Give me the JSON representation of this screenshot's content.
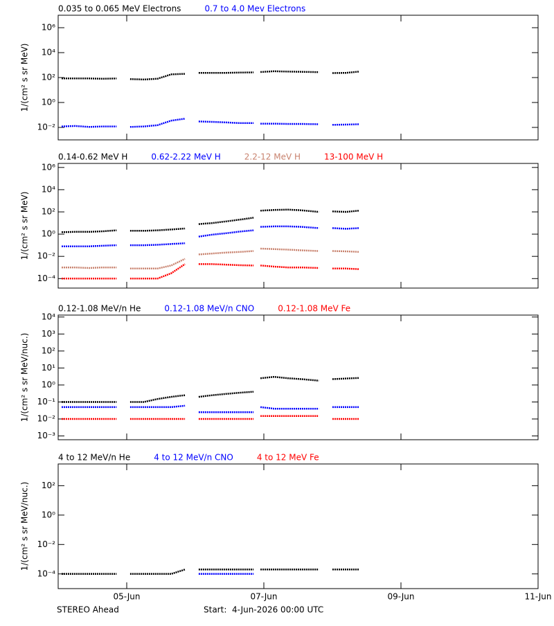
{
  "chart_data": [
    {
      "type": "line",
      "log_y": true,
      "ylabel": "1/(cm² s sr MeV)",
      "xlim": [
        0,
        7
      ],
      "xticks": [
        1,
        3,
        5,
        7
      ],
      "ylim": [
        0.001,
        10000000
      ],
      "yticks": [
        {
          "value": 0.01,
          "label": "10⁻²"
        },
        {
          "value": 1,
          "label": "10⁰"
        },
        {
          "value": 100,
          "label": "10²"
        },
        {
          "value": 10000,
          "label": "10⁴"
        },
        {
          "value": 1000000,
          "label": "10⁶"
        }
      ],
      "x": [
        0.05,
        0.25,
        0.45,
        0.65,
        0.85,
        0.92,
        1.05,
        1.25,
        1.45,
        1.65,
        1.85,
        1.92,
        2.05,
        2.25,
        2.45,
        2.65,
        2.85,
        2.88,
        2.95,
        3.15,
        3.35,
        3.55,
        3.8,
        3.92,
        4.0,
        4.2,
        4.39
      ],
      "series": [
        {
          "name": "0.035 to 0.065 MeV Electrons",
          "color": "#000000",
          "values": [
            85,
            85,
            85,
            80,
            85,
            null,
            75,
            70,
            80,
            180,
            200,
            null,
            240,
            240,
            240,
            250,
            260,
            null,
            280,
            320,
            300,
            290,
            270,
            null,
            230,
            240,
            300
          ]
        },
        {
          "name": "0.7 to 4.0 Mev Electrons",
          "color": "#0000ff",
          "values": [
            0.012,
            0.013,
            0.011,
            0.012,
            0.012,
            null,
            0.011,
            0.012,
            0.015,
            0.035,
            0.05,
            null,
            0.03,
            0.028,
            0.025,
            0.022,
            0.022,
            null,
            0.02,
            0.02,
            0.019,
            0.019,
            0.018,
            null,
            0.016,
            0.017,
            0.018
          ]
        }
      ]
    },
    {
      "type": "line",
      "log_y": true,
      "ylabel": "1/(cm² s sr MeV)",
      "xlim": [
        0,
        7
      ],
      "xticks": [
        1,
        3,
        5,
        7
      ],
      "ylim": [
        1.4e-05,
        2300000
      ],
      "yticks": [
        {
          "value": 0.0001,
          "label": "10⁻⁴"
        },
        {
          "value": 0.01,
          "label": "10⁻²"
        },
        {
          "value": 1,
          "label": "10⁰"
        },
        {
          "value": 100,
          "label": "10²"
        },
        {
          "value": 10000,
          "label": "10⁴"
        },
        {
          "value": 1000000,
          "label": "10⁶"
        }
      ],
      "x": [
        0.05,
        0.25,
        0.45,
        0.65,
        0.85,
        0.92,
        1.05,
        1.25,
        1.45,
        1.65,
        1.85,
        1.92,
        2.05,
        2.25,
        2.45,
        2.65,
        2.85,
        2.88,
        2.95,
        3.15,
        3.35,
        3.55,
        3.8,
        3.92,
        4.0,
        4.2,
        4.39
      ],
      "series": [
        {
          "name": "0.14-0.62 MeV H",
          "color": "#000000",
          "values": [
            1.5,
            1.6,
            1.6,
            1.8,
            2.2,
            null,
            2,
            2,
            2.2,
            2.6,
            3.2,
            null,
            8,
            10,
            14,
            20,
            30,
            null,
            130,
            150,
            160,
            140,
            100,
            null,
            110,
            100,
            130
          ]
        },
        {
          "name": "0.62-2.22 MeV H",
          "color": "#0000ff",
          "values": [
            0.08,
            0.08,
            0.08,
            0.09,
            0.1,
            null,
            0.1,
            0.1,
            0.11,
            0.13,
            0.15,
            null,
            0.6,
            0.9,
            1.2,
            1.7,
            2.2,
            null,
            4.5,
            5,
            5,
            4.5,
            3.5,
            null,
            3.5,
            3,
            3.5
          ]
        },
        {
          "name": "2.2-12 MeV H",
          "color": "#c8826e",
          "values": [
            0.001,
            0.001,
            0.0009,
            0.001,
            0.001,
            null,
            0.0008,
            0.0008,
            0.0008,
            0.0015,
            0.006,
            null,
            0.015,
            0.018,
            0.022,
            0.025,
            0.03,
            null,
            0.05,
            0.045,
            0.04,
            0.035,
            0.03,
            null,
            0.03,
            0.028,
            0.025
          ]
        },
        {
          "name": "13-100 MeV H",
          "color": "#ff0000",
          "values": [
            0.0001,
            0.0001,
            0.0001,
            0.0001,
            0.0001,
            null,
            0.0001,
            0.0001,
            0.0001,
            0.0003,
            0.002,
            null,
            0.002,
            0.002,
            0.0018,
            0.0016,
            0.0015,
            null,
            0.0015,
            0.0012,
            0.001,
            0.001,
            0.0009,
            null,
            0.0008,
            0.0008,
            0.0007
          ]
        }
      ]
    },
    {
      "type": "line",
      "log_y": true,
      "ylabel": "1/(cm² s sr MeV/nuc.)",
      "xlim": [
        0,
        7
      ],
      "xticks": [
        1,
        3,
        5,
        7
      ],
      "ylim": [
        0.0006,
        13000
      ],
      "yticks": [
        {
          "value": 0.001,
          "label": "10⁻³"
        },
        {
          "value": 0.01,
          "label": "10⁻²"
        },
        {
          "value": 0.1,
          "label": "10⁻¹"
        },
        {
          "value": 1,
          "label": "10⁰"
        },
        {
          "value": 10,
          "label": "10¹"
        },
        {
          "value": 100,
          "label": "10²"
        },
        {
          "value": 1000,
          "label": "10³"
        },
        {
          "value": 10000,
          "label": "10⁴"
        }
      ],
      "x": [
        0.05,
        0.25,
        0.45,
        0.65,
        0.85,
        0.92,
        1.05,
        1.25,
        1.45,
        1.65,
        1.85,
        1.92,
        2.05,
        2.25,
        2.45,
        2.65,
        2.85,
        2.88,
        2.95,
        3.15,
        3.35,
        3.55,
        3.8,
        3.92,
        4.0,
        4.2,
        4.39
      ],
      "series": [
        {
          "name": "0.12-1.08 MeV/n He",
          "color": "#000000",
          "values": [
            0.1,
            0.1,
            0.1,
            0.1,
            0.1,
            null,
            0.1,
            0.1,
            0.15,
            0.2,
            0.25,
            null,
            0.2,
            0.25,
            0.3,
            0.35,
            0.4,
            null,
            2.5,
            3,
            2.5,
            2.2,
            1.8,
            null,
            2.2,
            2.4,
            2.6
          ]
        },
        {
          "name": "0.12-1.08 MeV/n CNO",
          "color": "#0000ff",
          "values": [
            0.05,
            0.05,
            0.05,
            0.05,
            0.05,
            null,
            0.05,
            0.05,
            0.05,
            0.05,
            0.06,
            null,
            0.025,
            0.025,
            0.025,
            0.025,
            0.025,
            null,
            0.05,
            0.04,
            0.04,
            0.04,
            0.04,
            null,
            0.05,
            0.05,
            0.05
          ]
        },
        {
          "name": "0.12-1.08 MeV Fe",
          "color": "#ff0000",
          "values": [
            0.01,
            0.01,
            0.01,
            0.01,
            0.01,
            null,
            0.01,
            0.01,
            0.01,
            0.01,
            0.01,
            null,
            0.01,
            0.01,
            0.01,
            0.01,
            0.01,
            null,
            0.015,
            0.015,
            0.015,
            0.015,
            0.015,
            null,
            0.01,
            0.01,
            0.01
          ]
        }
      ]
    },
    {
      "type": "line",
      "log_y": true,
      "ylabel": "1/(cm² s sr MeV/nuc.)",
      "xlim": [
        0,
        7
      ],
      "xticks": [
        {
          "value": 1,
          "label": "05-Jun"
        },
        {
          "value": 3,
          "label": "07-Jun"
        },
        {
          "value": 5,
          "label": "09-Jun"
        },
        {
          "value": 7,
          "label": "11-Jun"
        }
      ],
      "ylim": [
        1e-05,
        3000
      ],
      "yticks": [
        {
          "value": 0.0001,
          "label": "10⁻⁴"
        },
        {
          "value": 0.01,
          "label": "10⁻²"
        },
        {
          "value": 1,
          "label": "10⁰"
        },
        {
          "value": 100,
          "label": "10²"
        }
      ],
      "x": [
        0.05,
        0.25,
        0.45,
        0.65,
        0.85,
        0.92,
        1.05,
        1.25,
        1.45,
        1.65,
        1.85,
        1.92,
        2.05,
        2.25,
        2.45,
        2.65,
        2.85,
        2.88,
        2.95,
        3.15,
        3.35,
        3.55,
        3.8,
        3.92,
        4.0,
        4.2,
        4.39
      ],
      "series": [
        {
          "name": "4 to 12 MeV/n He",
          "color": "#000000",
          "values": [
            0.0001,
            0.0001,
            0.0001,
            0.0001,
            0.0001,
            null,
            0.0001,
            0.0001,
            0.0001,
            0.0001,
            0.0002,
            null,
            0.0002,
            0.0002,
            0.0002,
            0.0002,
            0.0002,
            null,
            0.0002,
            0.0002,
            0.0002,
            0.0002,
            0.0002,
            null,
            0.0002,
            0.0002,
            0.0002
          ]
        },
        {
          "name": "4 to 12 MeV/n CNO",
          "color": "#0000ff",
          "values": [
            null,
            null,
            null,
            null,
            null,
            null,
            null,
            null,
            null,
            null,
            null,
            null,
            0.0001,
            0.0001,
            0.0001,
            0.0001,
            0.0001,
            null,
            null,
            null,
            null,
            null,
            null,
            null,
            null,
            null,
            null
          ]
        },
        {
          "name": "4 to 12 MeV Fe",
          "color": "#ff0000",
          "values": [
            null,
            null,
            null,
            null,
            null,
            null,
            null,
            null,
            null,
            null,
            null,
            null,
            null,
            null,
            null,
            null,
            null,
            null,
            null,
            null,
            null,
            null,
            null,
            null,
            null,
            null,
            null
          ]
        }
      ]
    }
  ],
  "footer": {
    "mission": "STEREO Ahead",
    "start": "Start:  4-Jun-2026 00:00 UTC"
  }
}
